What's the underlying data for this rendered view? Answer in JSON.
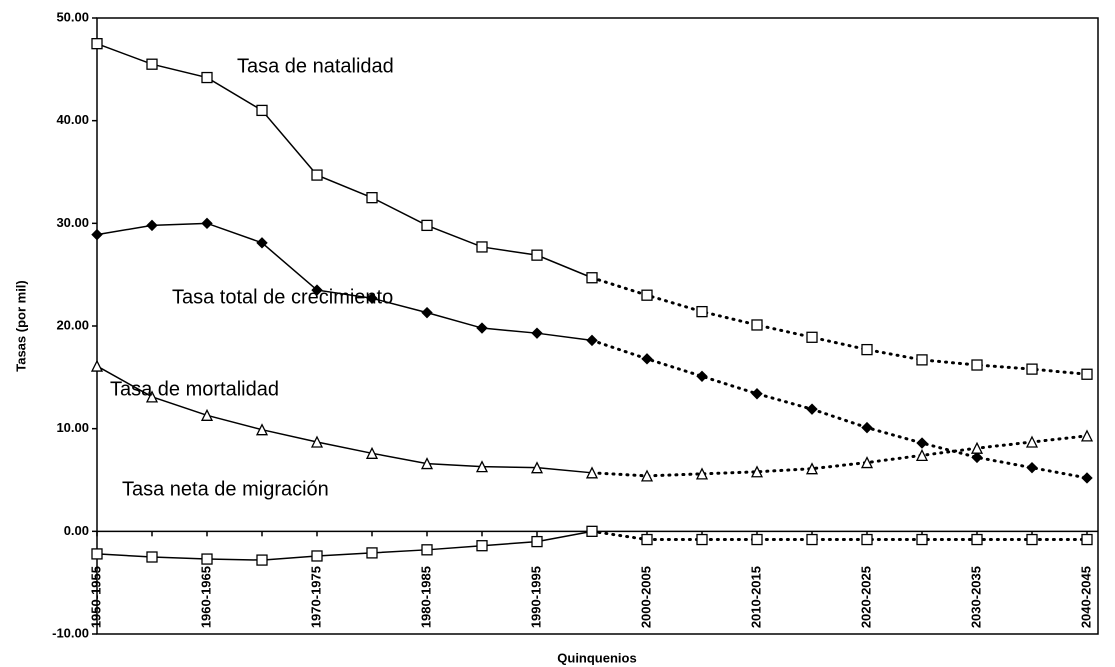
{
  "chart_data": {
    "type": "line",
    "xlabel": "Quinquenios",
    "ylabel": "Tasas (por mil)",
    "categories": [
      "1950-1955",
      null,
      "1960-1965",
      null,
      "1970-1975",
      null,
      "1980-1985",
      null,
      "1990-1995",
      null,
      "2000-2005",
      null,
      "2010-2015",
      null,
      "2020-2025",
      null,
      "2030-2035",
      null,
      "2040-2045"
    ],
    "projection_from_index": 9,
    "series": [
      {
        "name": "Tasa de natalidad",
        "color": "#000000",
        "marker": "square",
        "values": [
          47.5,
          45.5,
          44.2,
          41.0,
          34.7,
          32.5,
          29.8,
          27.7,
          26.9,
          24.7,
          23.0,
          21.4,
          20.1,
          18.9,
          17.7,
          16.7,
          16.2,
          15.8,
          15.3
        ]
      },
      {
        "name": "Tasa total de crecimiento",
        "color": "#000000",
        "marker": "diamond",
        "values": [
          28.9,
          29.8,
          30.0,
          28.1,
          23.5,
          22.7,
          21.3,
          19.8,
          19.3,
          18.6,
          16.8,
          15.1,
          13.4,
          11.9,
          10.1,
          8.6,
          7.2,
          6.2,
          5.2
        ]
      },
      {
        "name": "Tasa de mortalidad",
        "color": "#000000",
        "marker": "triangle",
        "values": [
          16.1,
          13.1,
          11.3,
          9.9,
          8.7,
          7.6,
          6.6,
          6.3,
          6.2,
          5.7,
          5.4,
          5.6,
          5.8,
          6.1,
          6.7,
          7.4,
          8.1,
          8.7,
          9.3
        ]
      },
      {
        "name": "Tasa neta de migración",
        "color": "#000000",
        "marker": "square",
        "values": [
          -2.2,
          -2.5,
          -2.7,
          -2.8,
          -2.4,
          -2.1,
          -1.8,
          -1.4,
          -1.0,
          0.0,
          -0.8,
          -0.8,
          -0.8,
          -0.8,
          -0.8,
          -0.8,
          -0.8,
          -0.8,
          -0.8
        ]
      }
    ],
    "ylim": [
      -10,
      50
    ],
    "yticks": [
      {
        "value": -10,
        "label": "-10.00"
      },
      {
        "value": 0,
        "label": "0.00"
      },
      {
        "value": 10,
        "label": "10.00"
      },
      {
        "value": 20,
        "label": "20.00"
      },
      {
        "value": 30,
        "label": "30.00"
      },
      {
        "value": 40,
        "label": "40.00"
      },
      {
        "value": 50,
        "label": "50.00"
      }
    ],
    "grid": false
  }
}
